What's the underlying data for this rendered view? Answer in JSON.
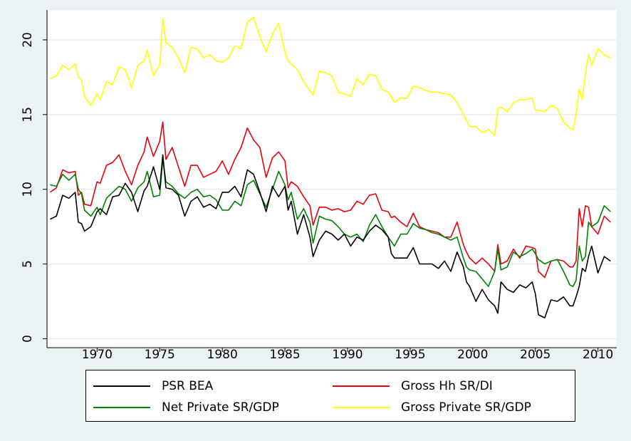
{
  "chart_data": {
    "type": "line",
    "title": "",
    "xlabel": "",
    "ylabel": "",
    "xlim": [
      1966,
      2011.5
    ],
    "ylim": [
      -0.6,
      22
    ],
    "x_ticks": [
      1970,
      1975,
      1980,
      1985,
      1990,
      1995,
      2000,
      2005,
      2010
    ],
    "y_ticks": [
      0,
      5,
      10,
      15,
      20
    ],
    "grid": "horizontal",
    "legend_position": "bottom",
    "series": [
      {
        "name": "PSR BEA",
        "color": "#000000",
        "x": [
          1966.25,
          1966.75,
          1967.25,
          1967.75,
          1968.25,
          1968.5,
          1968.75,
          1969.0,
          1969.5,
          1970.0,
          1970.25,
          1970.75,
          1971.25,
          1971.75,
          1972.25,
          1972.75,
          1973.25,
          1973.75,
          1974.0,
          1974.5,
          1975.0,
          1975.25,
          1975.5,
          1976.0,
          1976.5,
          1977.0,
          1977.5,
          1978.0,
          1978.5,
          1979.0,
          1979.5,
          1980.0,
          1980.5,
          1981.0,
          1981.5,
          1982.0,
          1982.5,
          1983.0,
          1983.5,
          1984.0,
          1984.5,
          1985.0,
          1985.25,
          1985.5,
          1986.0,
          1986.5,
          1987.0,
          1987.25,
          1987.75,
          1988.25,
          1988.75,
          1989.25,
          1989.75,
          1990.25,
          1990.75,
          1991.25,
          1991.75,
          1992.25,
          1992.75,
          1993.25,
          1993.5,
          1993.75,
          1994.25,
          1994.75,
          1995.25,
          1995.75,
          1996.25,
          1996.75,
          1997.25,
          1997.75,
          1998.25,
          1998.75,
          1999.25,
          1999.5,
          1999.75,
          2000.25,
          2000.75,
          2001.25,
          2001.75,
          2002.0,
          2002.25,
          2002.75,
          2003.25,
          2003.75,
          2004.25,
          2004.75,
          2005.0,
          2005.25,
          2005.75,
          2006.25,
          2006.75,
          2007.25,
          2007.75,
          2008.0,
          2008.25,
          2008.5,
          2008.75,
          2009.0,
          2009.25,
          2009.5,
          2010.0,
          2010.5,
          2011.0
        ],
        "y": [
          8.0,
          8.2,
          9.6,
          9.4,
          9.8,
          7.8,
          7.7,
          7.2,
          7.5,
          8.5,
          8.7,
          8.3,
          9.5,
          9.6,
          10.4,
          9.8,
          8.5,
          9.9,
          10.2,
          11.5,
          10.0,
          12.3,
          10.1,
          10.0,
          9.6,
          8.2,
          9.2,
          9.5,
          8.8,
          9.0,
          8.7,
          9.8,
          9.8,
          10.2,
          9.5,
          11.3,
          11.0,
          9.8,
          8.5,
          10.2,
          9.5,
          10.2,
          8.6,
          9.2,
          7.0,
          8.3,
          6.8,
          5.5,
          6.6,
          7.2,
          7.0,
          6.6,
          7.0,
          6.2,
          6.8,
          6.6,
          7.2,
          7.6,
          7.3,
          6.8,
          5.7,
          5.4,
          5.4,
          5.4,
          6.1,
          5.0,
          5.0,
          5.0,
          4.7,
          5.2,
          4.5,
          5.8,
          4.8,
          3.8,
          3.5,
          2.5,
          3.3,
          2.6,
          2.2,
          1.7,
          3.8,
          3.3,
          3.1,
          3.6,
          3.4,
          3.8,
          3.0,
          1.6,
          1.4,
          2.6,
          2.5,
          2.8,
          2.2,
          2.2,
          2.8,
          3.5,
          4.7,
          4.5,
          5.5,
          6.2,
          4.4,
          5.5,
          5.2
        ]
      },
      {
        "name": "Gross Hh SR/DI",
        "color": "#e8000b",
        "x": [
          1966.25,
          1966.75,
          1967.25,
          1967.75,
          1968.25,
          1968.5,
          1968.75,
          1969.0,
          1969.5,
          1970.0,
          1970.25,
          1970.75,
          1971.25,
          1971.75,
          1972.25,
          1972.75,
          1973.25,
          1973.75,
          1974.0,
          1974.5,
          1975.0,
          1975.25,
          1975.5,
          1976.0,
          1976.5,
          1977.0,
          1977.5,
          1978.0,
          1978.5,
          1979.0,
          1979.5,
          1980.0,
          1980.5,
          1981.0,
          1981.5,
          1982.0,
          1982.5,
          1983.0,
          1983.5,
          1984.0,
          1984.5,
          1985.0,
          1985.25,
          1985.5,
          1986.0,
          1986.5,
          1987.0,
          1987.25,
          1987.75,
          1988.25,
          1988.75,
          1989.25,
          1989.75,
          1990.25,
          1990.75,
          1991.25,
          1991.75,
          1992.25,
          1992.75,
          1993.25,
          1993.5,
          1993.75,
          1994.25,
          1994.75,
          1995.25,
          1995.75,
          1996.25,
          1996.75,
          1997.25,
          1997.75,
          1998.25,
          1998.75,
          1999.25,
          1999.5,
          1999.75,
          2000.25,
          2000.75,
          2001.25,
          2001.75,
          2002.0,
          2002.25,
          2002.75,
          2003.25,
          2003.75,
          2004.25,
          2004.75,
          2005.0,
          2005.25,
          2005.75,
          2006.25,
          2006.75,
          2007.25,
          2007.75,
          2008.0,
          2008.25,
          2008.5,
          2008.75,
          2009.0,
          2009.25,
          2009.5,
          2010.0,
          2010.5,
          2011.0
        ],
        "y": [
          9.8,
          10.1,
          11.3,
          11.1,
          11.2,
          9.6,
          9.8,
          9.0,
          8.9,
          10.5,
          10.4,
          11.6,
          11.8,
          12.3,
          11.2,
          10.3,
          11.6,
          12.5,
          13.5,
          12.2,
          13.2,
          14.5,
          12.0,
          12.8,
          11.5,
          10.2,
          11.6,
          11.6,
          10.8,
          11.0,
          11.2,
          11.9,
          11.0,
          12.0,
          12.8,
          14.1,
          13.3,
          12.8,
          10.8,
          12.1,
          12.5,
          11.9,
          10.1,
          10.5,
          10.2,
          9.5,
          8.9,
          7.6,
          8.8,
          8.8,
          8.6,
          8.7,
          8.5,
          8.6,
          9.2,
          9.0,
          9.6,
          9.7,
          8.6,
          8.5,
          8.1,
          8.2,
          7.8,
          7.5,
          8.4,
          7.5,
          7.3,
          7.2,
          7.1,
          6.8,
          6.8,
          7.8,
          6.3,
          5.8,
          5.4,
          5.0,
          5.4,
          5.0,
          4.5,
          6.3,
          5.0,
          5.2,
          6.0,
          5.4,
          6.2,
          6.1,
          6.0,
          4.5,
          4.1,
          5.2,
          5.3,
          5.2,
          4.8,
          4.8,
          5.2,
          8.7,
          7.5,
          8.9,
          8.8,
          7.5,
          7.0,
          8.2,
          7.8
        ]
      },
      {
        "name": "Net Private SR/GDP",
        "color": "#008000",
        "x": [
          1966.25,
          1966.75,
          1967.25,
          1967.75,
          1968.25,
          1968.5,
          1968.75,
          1969.0,
          1969.5,
          1970.0,
          1970.25,
          1970.75,
          1971.25,
          1971.75,
          1972.25,
          1972.75,
          1973.25,
          1973.75,
          1974.0,
          1974.5,
          1975.0,
          1975.25,
          1975.5,
          1976.0,
          1976.5,
          1977.0,
          1977.5,
          1978.0,
          1978.5,
          1979.0,
          1979.5,
          1980.0,
          1980.5,
          1981.0,
          1981.5,
          1982.0,
          1982.5,
          1983.0,
          1983.5,
          1984.0,
          1984.5,
          1985.0,
          1985.25,
          1985.5,
          1986.0,
          1986.5,
          1987.0,
          1987.25,
          1987.75,
          1988.25,
          1988.75,
          1989.25,
          1989.75,
          1990.25,
          1990.75,
          1991.25,
          1991.75,
          1992.25,
          1992.75,
          1993.25,
          1993.5,
          1993.75,
          1994.25,
          1994.75,
          1995.25,
          1995.75,
          1996.25,
          1996.75,
          1997.25,
          1997.75,
          1998.25,
          1998.75,
          1999.25,
          1999.5,
          1999.75,
          2000.25,
          2000.75,
          2001.25,
          2001.75,
          2002.0,
          2002.25,
          2002.75,
          2003.25,
          2003.75,
          2004.25,
          2004.75,
          2005.0,
          2005.25,
          2005.75,
          2006.25,
          2006.75,
          2007.25,
          2007.75,
          2008.0,
          2008.25,
          2008.5,
          2008.75,
          2009.0,
          2009.25,
          2009.5,
          2010.0,
          2010.5,
          2011.0
        ],
        "y": [
          10.3,
          10.2,
          11.0,
          10.6,
          11.0,
          10.0,
          9.7,
          8.6,
          8.2,
          8.8,
          8.3,
          9.4,
          9.8,
          10.2,
          10.0,
          9.2,
          10.1,
          10.5,
          11.2,
          9.5,
          9.6,
          12.0,
          10.5,
          10.2,
          9.7,
          9.4,
          9.8,
          10.0,
          9.5,
          9.6,
          9.3,
          8.6,
          8.6,
          9.2,
          8.9,
          10.3,
          10.6,
          9.7,
          8.8,
          10.0,
          11.2,
          10.3,
          9.3,
          9.8,
          8.0,
          8.7,
          7.8,
          6.4,
          8.2,
          8.0,
          7.9,
          7.5,
          7.0,
          6.8,
          7.0,
          6.5,
          7.6,
          8.3,
          7.5,
          6.8,
          6.5,
          6.2,
          7.0,
          7.0,
          7.7,
          7.4,
          7.3,
          7.1,
          7.0,
          6.8,
          6.6,
          6.8,
          5.4,
          4.8,
          4.6,
          4.5,
          4.0,
          3.5,
          4.5,
          6.0,
          4.6,
          4.8,
          5.8,
          5.5,
          5.7,
          6.0,
          5.7,
          5.3,
          5.0,
          5.2,
          5.3,
          4.5,
          3.6,
          3.5,
          3.9,
          6.2,
          5.2,
          5.5,
          7.8,
          7.5,
          7.8,
          8.9,
          8.5
        ]
      },
      {
        "name": "Gross Private SR/GDP",
        "color": "#ffff00",
        "x": [
          1966.25,
          1966.75,
          1967.25,
          1967.75,
          1968.25,
          1968.5,
          1968.75,
          1969.0,
          1969.5,
          1970.0,
          1970.25,
          1970.75,
          1971.25,
          1971.75,
          1972.25,
          1972.75,
          1973.25,
          1973.75,
          1974.0,
          1974.5,
          1975.0,
          1975.25,
          1975.5,
          1976.0,
          1976.5,
          1977.0,
          1977.5,
          1978.0,
          1978.5,
          1979.0,
          1979.5,
          1980.0,
          1980.5,
          1981.0,
          1981.5,
          1982.0,
          1982.5,
          1983.0,
          1983.5,
          1984.0,
          1984.5,
          1985.0,
          1985.25,
          1985.5,
          1986.0,
          1986.5,
          1987.0,
          1987.25,
          1987.75,
          1988.25,
          1988.75,
          1989.25,
          1989.75,
          1990.25,
          1990.75,
          1991.25,
          1991.75,
          1992.25,
          1992.75,
          1993.25,
          1993.5,
          1993.75,
          1994.25,
          1994.75,
          1995.25,
          1995.75,
          1996.25,
          1996.75,
          1997.25,
          1997.75,
          1998.25,
          1998.75,
          1999.25,
          1999.5,
          1999.75,
          2000.25,
          2000.75,
          2001.25,
          2001.75,
          2002.0,
          2002.25,
          2002.75,
          2003.25,
          2003.75,
          2004.25,
          2004.75,
          2005.0,
          2005.25,
          2005.75,
          2006.25,
          2006.75,
          2007.25,
          2007.75,
          2008.0,
          2008.25,
          2008.5,
          2008.75,
          2009.0,
          2009.25,
          2009.5,
          2010.0,
          2010.5,
          2011.0
        ],
        "y": [
          17.4,
          17.6,
          18.3,
          18.0,
          18.4,
          17.5,
          17.3,
          16.2,
          15.6,
          16.4,
          16.0,
          17.2,
          17.0,
          18.2,
          18.0,
          16.8,
          18.3,
          18.6,
          19.3,
          17.6,
          18.3,
          21.4,
          19.8,
          19.5,
          18.8,
          17.8,
          19.5,
          19.4,
          18.8,
          19.0,
          18.6,
          18.5,
          18.8,
          19.6,
          19.4,
          21.2,
          21.5,
          20.2,
          19.2,
          20.4,
          21.1,
          19.2,
          18.6,
          18.4,
          18.0,
          17.2,
          16.6,
          16.3,
          17.9,
          17.8,
          17.6,
          16.5,
          16.4,
          16.2,
          17.4,
          17.0,
          17.7,
          17.6,
          16.7,
          16.5,
          16.2,
          15.8,
          16.1,
          16.1,
          16.9,
          16.8,
          16.6,
          16.5,
          16.5,
          16.4,
          16.3,
          15.8,
          15.0,
          14.6,
          14.2,
          14.2,
          13.8,
          14.0,
          13.6,
          15.4,
          15.5,
          15.2,
          15.8,
          16.0,
          16.0,
          16.1,
          15.3,
          15.3,
          15.2,
          15.6,
          15.4,
          14.5,
          14.1,
          14.0,
          15.1,
          16.7,
          16.0,
          17.8,
          19.0,
          18.3,
          19.4,
          19.0,
          18.8
        ]
      }
    ]
  }
}
